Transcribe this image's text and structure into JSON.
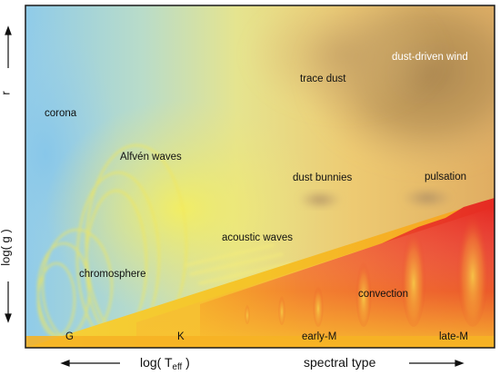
{
  "regions": {
    "corona": "corona",
    "alfven_waves": "Alfvén waves",
    "chromosphere": "chromosphere",
    "acoustic_waves": "acoustic waves",
    "trace_dust": "trace dust",
    "dust_driven_wind": "dust-driven wind",
    "dust_bunnies": "dust bunnies",
    "pulsation": "pulsation",
    "convection": "convection"
  },
  "spectral_ticks": [
    "G",
    "K",
    "early-M",
    "late-M"
  ],
  "axes": {
    "left_top": "r",
    "left_bottom": "log( g )",
    "bottom_left_prefix": "log( T",
    "bottom_left_sub": "eff",
    "bottom_left_suffix": " )",
    "bottom_right": "spectral type"
  },
  "colors": {
    "corona_blue": "#8ccbe8",
    "wave_yellow": "#f3ea66",
    "dust_brown": "#a9864f",
    "convection_red": "#e8322a",
    "chromosphere_orange": "#f4b21f"
  }
}
